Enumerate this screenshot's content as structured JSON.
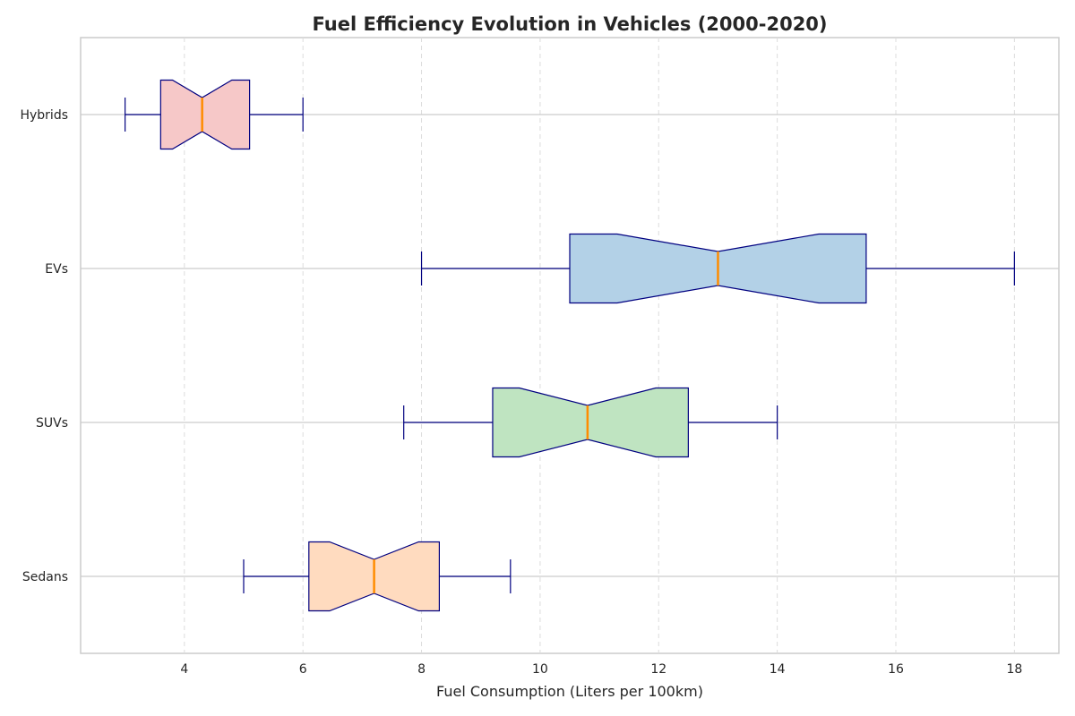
{
  "chart_data": {
    "type": "boxplot",
    "orientation": "horizontal",
    "notched": true,
    "title": "Fuel Efficiency Evolution in Vehicles (2000-2020)",
    "xlabel": "Fuel Consumption (Liters per 100km)",
    "ylabel": "",
    "xlim": [
      2.25,
      18.75
    ],
    "xticks": [
      4,
      6,
      8,
      10,
      12,
      14,
      16,
      18
    ],
    "grid": true,
    "categories": [
      "Sedans",
      "SUVs",
      "EVs",
      "Hybrids"
    ],
    "series": [
      {
        "category": "Sedans",
        "whisker_low": 5.0,
        "q1": 6.1,
        "median": 7.2,
        "q3": 8.3,
        "whisker_high": 9.5,
        "notch_low": 6.45,
        "notch_high": 7.95,
        "color": "#ffdbbf"
      },
      {
        "category": "SUVs",
        "whisker_low": 7.7,
        "q1": 9.2,
        "median": 10.8,
        "q3": 12.5,
        "whisker_high": 14.0,
        "notch_low": 9.65,
        "notch_high": 11.95,
        "color": "#bfe4c1"
      },
      {
        "category": "EVs",
        "whisker_low": 8.0,
        "q1": 10.5,
        "median": 13.0,
        "q3": 15.5,
        "whisker_high": 18.0,
        "notch_low": 11.3,
        "notch_high": 14.7,
        "color": "#b3d1e7"
      },
      {
        "category": "Hybrids",
        "whisker_low": 3.0,
        "q1": 3.6,
        "median": 4.3,
        "q3": 5.1,
        "whisker_high": 6.0,
        "notch_low": 3.8,
        "notch_high": 4.8,
        "color": "#f6c8c8"
      }
    ],
    "colors": {
      "box_edge": "#000080",
      "median_line": "#ff8c00",
      "grid_x": "#dcdcdc",
      "grid_y": "#cccccc",
      "frame": "#cccccc"
    }
  }
}
